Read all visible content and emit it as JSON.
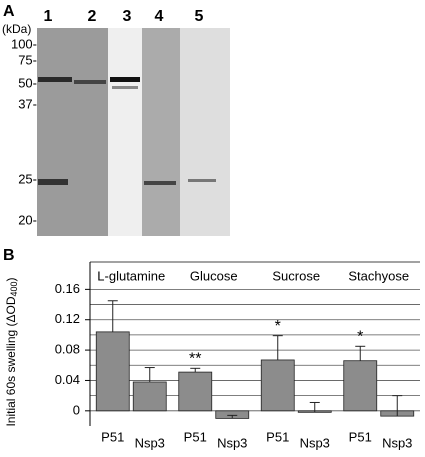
{
  "panel_a": {
    "label": "A",
    "lanes": [
      "1",
      "2",
      "3",
      "4",
      "5"
    ],
    "unit": "(kDa)",
    "markers": [
      "100-",
      "75-",
      "50-",
      "37-",
      "25-",
      "20-"
    ]
  },
  "chart_data": {
    "type": "bar",
    "panel_label": "B",
    "ylabel": [
      "Initial 60s swelling (ΔOD",
      "400",
      ")"
    ],
    "categories": [
      "L-glutamine",
      "Glucose",
      "Sucrose",
      "Stachyose"
    ],
    "series": [
      {
        "name": "P51",
        "color": "#8c8c8c",
        "values": [
          0.104,
          0.051,
          0.067,
          0.066
        ],
        "errors": [
          0.041,
          0.005,
          0.032,
          0.019
        ],
        "annotations": [
          null,
          "**",
          "*",
          "*"
        ]
      },
      {
        "name": "Nsp3",
        "color": "#8c8c8c",
        "values": [
          0.038,
          -0.01,
          -0.002,
          -0.007
        ],
        "errors": [
          0.019,
          0.004,
          0.013,
          0.027
        ]
      }
    ],
    "ylim": [
      -0.02,
      0.2
    ],
    "yticks": [
      0,
      0.04,
      0.08,
      0.12,
      0.16
    ],
    "minor_yticks": [
      0.02,
      0.06,
      0.1,
      0.14
    ],
    "grid": true
  }
}
